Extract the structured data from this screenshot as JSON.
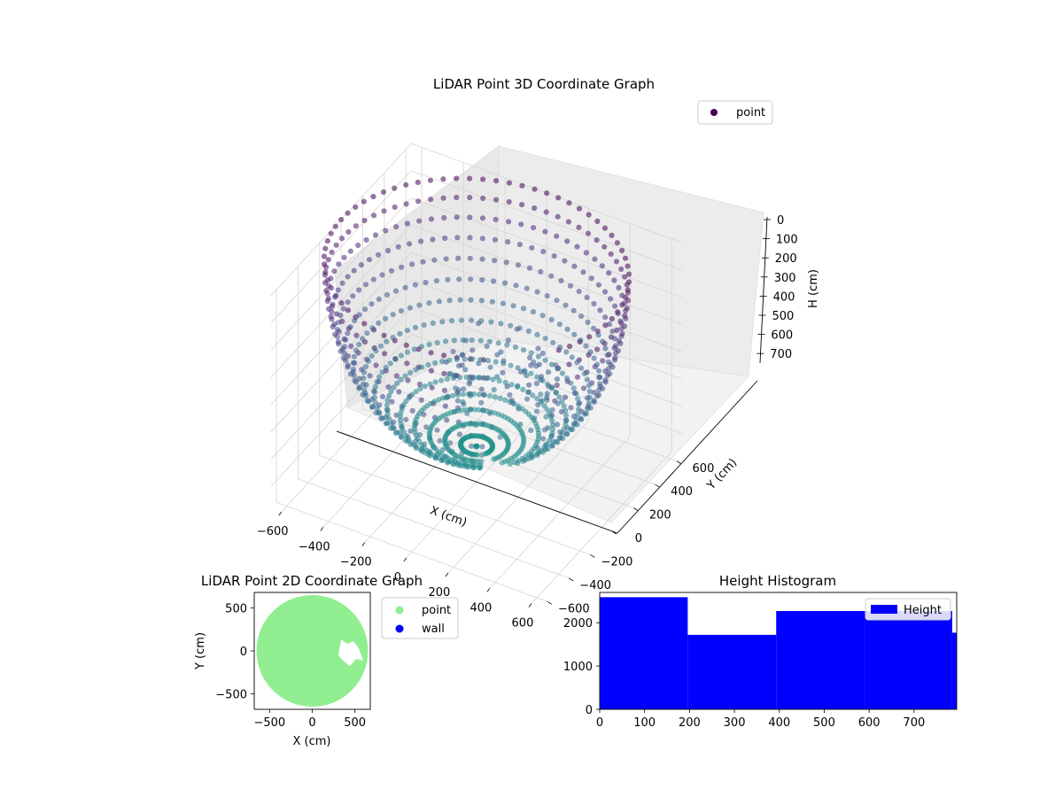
{
  "chart_data": [
    {
      "type": "scatter",
      "projection": "3d",
      "title": "LiDAR Point 3D Coordinate Graph",
      "xlabel": "X (cm)",
      "ylabel": "Y (cm)",
      "zlabel": "H (cm)",
      "xlim": [
        -650,
        650
      ],
      "ylim": [
        -650,
        650
      ],
      "zlim": [
        780,
        0
      ],
      "x_ticks": [
        -600,
        -400,
        -200,
        0,
        200,
        400,
        600
      ],
      "y_ticks": [
        -600,
        -400,
        -200,
        0,
        200,
        400,
        600
      ],
      "z_ticks": [
        0,
        100,
        200,
        300,
        400,
        500,
        600,
        700
      ],
      "colormap": "viridis",
      "grid": true,
      "legend": {
        "position": "upper-right",
        "entries": [
          {
            "label": "point",
            "color": "#440154"
          }
        ]
      },
      "shape": "hemispherical shell of points (radius ~650 cm) opening upward, with an inner cluster of obstacle points",
      "sample_points": [
        {
          "x": 650,
          "y": 0,
          "h": 0
        },
        {
          "x": 0,
          "y": 650,
          "h": 0
        },
        {
          "x": -650,
          "y": 0,
          "h": 0
        },
        {
          "x": 0,
          "y": -650,
          "h": 0
        },
        {
          "x": 460,
          "y": 460,
          "h": 0
        },
        {
          "x": -460,
          "y": -460,
          "h": 0
        },
        {
          "x": 0,
          "y": 0,
          "h": 650
        },
        {
          "x": 400,
          "y": 100,
          "h": 380
        },
        {
          "x": 380,
          "y": 40,
          "h": 300
        },
        {
          "x": 350,
          "y": -80,
          "h": 460
        }
      ]
    },
    {
      "type": "scatter",
      "title": "LiDAR Point 2D Coordinate Graph",
      "xlabel": "X (cm)",
      "ylabel": "Y (cm)",
      "xlim": [
        -680,
        680
      ],
      "ylim": [
        -680,
        680
      ],
      "x_ticks": [
        -500,
        0,
        500
      ],
      "y_ticks": [
        -500,
        0,
        500
      ],
      "legend": {
        "position": "outside-right",
        "entries": [
          {
            "label": "point",
            "color": "#90ee90"
          },
          {
            "label": "wall",
            "color": "#0000ff"
          }
        ]
      },
      "series": [
        {
          "name": "point",
          "color": "#90ee90",
          "shape": "filled disk of radius ~650 cm centred at origin"
        },
        {
          "name": "wall",
          "color": "#0000ff",
          "values": []
        }
      ],
      "gap": {
        "x": [
          330,
          600
        ],
        "y": [
          -160,
          160
        ]
      }
    },
    {
      "type": "bar",
      "subtype": "histogram",
      "title": "Height Histogram",
      "xlabel": "",
      "ylabel": "",
      "xlim": [
        0,
        795
      ],
      "ylim": [
        0,
        2700
      ],
      "x_ticks": [
        0,
        100,
        200,
        300,
        400,
        500,
        600,
        700
      ],
      "y_ticks": [
        0,
        1000,
        2000
      ],
      "legend": {
        "position": "upper-right",
        "entries": [
          {
            "label": "Height",
            "color": "#0000ff"
          }
        ]
      },
      "series": [
        {
          "name": "Height",
          "color": "#0000ff",
          "bins": [
            0,
            196,
            393,
            589,
            785,
            795
          ],
          "values": [
            2590,
            1720,
            2270,
            2270,
            1770
          ]
        }
      ]
    }
  ]
}
